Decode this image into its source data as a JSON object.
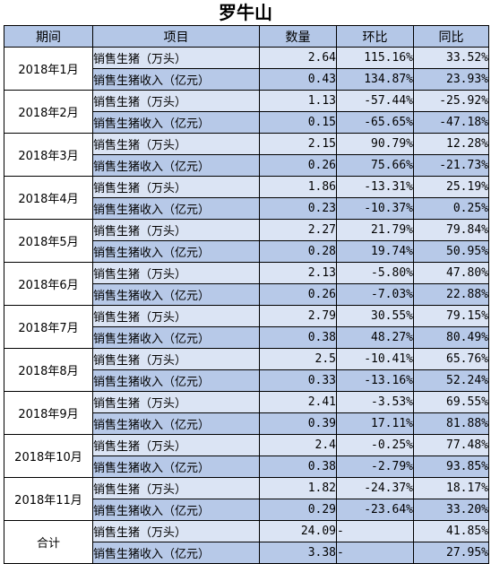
{
  "title": "罗牛山",
  "headers": [
    "期间",
    "项目",
    "数量",
    "环比",
    "同比"
  ],
  "groups": [
    {
      "period": "2018年1月",
      "rows": [
        {
          "item": "销售生猪（万头）",
          "qty": "2.64",
          "mom": "115.16%",
          "yoy": "33.52%"
        },
        {
          "item": "销售生猪收入（亿元）",
          "qty": "0.43",
          "mom": "134.87%",
          "yoy": "23.93%"
        }
      ]
    },
    {
      "period": "2018年2月",
      "rows": [
        {
          "item": "销售生猪（万头）",
          "qty": "1.13",
          "mom": "-57.44%",
          "yoy": "-25.92%"
        },
        {
          "item": "销售生猪收入（亿元）",
          "qty": "0.15",
          "mom": "-65.65%",
          "yoy": "-47.18%"
        }
      ]
    },
    {
      "period": "2018年3月",
      "rows": [
        {
          "item": "销售生猪（万头）",
          "qty": "2.15",
          "mom": "90.79%",
          "yoy": "12.28%"
        },
        {
          "item": "销售生猪收入（亿元）",
          "qty": "0.26",
          "mom": "75.66%",
          "yoy": "-21.73%"
        }
      ]
    },
    {
      "period": "2018年4月",
      "rows": [
        {
          "item": "销售生猪（万头）",
          "qty": "1.86",
          "mom": "-13.31%",
          "yoy": "25.19%"
        },
        {
          "item": "销售生猪收入（亿元）",
          "qty": "0.23",
          "mom": "-10.37%",
          "yoy": "0.25%"
        }
      ]
    },
    {
      "period": "2018年5月",
      "rows": [
        {
          "item": "销售生猪（万头）",
          "qty": "2.27",
          "mom": "21.79%",
          "yoy": "79.84%"
        },
        {
          "item": "销售生猪收入（亿元）",
          "qty": "0.28",
          "mom": "19.74%",
          "yoy": "50.95%"
        }
      ]
    },
    {
      "period": "2018年6月",
      "rows": [
        {
          "item": "销售生猪（万头）",
          "qty": "2.13",
          "mom": "-5.80%",
          "yoy": "47.80%"
        },
        {
          "item": "销售生猪收入（亿元）",
          "qty": "0.26",
          "mom": "-7.03%",
          "yoy": "22.88%"
        }
      ]
    },
    {
      "period": "2018年7月",
      "rows": [
        {
          "item": "销售生猪（万头）",
          "qty": "2.79",
          "mom": "30.55%",
          "yoy": "79.15%"
        },
        {
          "item": "销售生猪收入（亿元）",
          "qty": "0.38",
          "mom": "48.27%",
          "yoy": "80.49%"
        }
      ]
    },
    {
      "period": "2018年8月",
      "rows": [
        {
          "item": "销售生猪（万头）",
          "qty": "2.5",
          "mom": "-10.41%",
          "yoy": "65.76%"
        },
        {
          "item": "销售生猪收入（亿元）",
          "qty": "0.33",
          "mom": "-13.16%",
          "yoy": "52.24%"
        }
      ]
    },
    {
      "period": "2018年9月",
      "rows": [
        {
          "item": "销售生猪（万头）",
          "qty": "2.41",
          "mom": "-3.53%",
          "yoy": "69.55%"
        },
        {
          "item": "销售生猪收入（亿元）",
          "qty": "0.39",
          "mom": "17.11%",
          "yoy": "81.88%"
        }
      ]
    },
    {
      "period": "2018年10月",
      "rows": [
        {
          "item": "销售生猪（万头）",
          "qty": "2.4",
          "mom": "-0.25%",
          "yoy": "77.48%"
        },
        {
          "item": "销售生猪收入（亿元）",
          "qty": "0.38",
          "mom": "-2.79%",
          "yoy": "93.85%"
        }
      ]
    },
    {
      "period": "2018年11月",
      "rows": [
        {
          "item": "销售生猪（万头）",
          "qty": "1.82",
          "mom": "-24.37%",
          "yoy": "18.17%"
        },
        {
          "item": "销售生猪收入（亿元）",
          "qty": "0.29",
          "mom": "-23.64%",
          "yoy": "33.20%"
        }
      ]
    },
    {
      "period": "合计",
      "rows": [
        {
          "item": "销售生猪（万头）",
          "qty": "24.09",
          "mom": "-",
          "yoy": "41.85%"
        },
        {
          "item": "销售生猪收入（亿元）",
          "qty": "3.38",
          "mom": "-",
          "yoy": "27.95%"
        }
      ]
    }
  ]
}
